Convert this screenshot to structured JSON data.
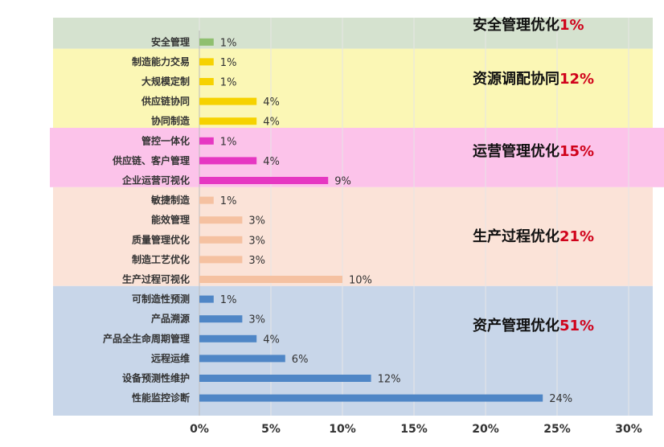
{
  "chart_data": {
    "type": "bar",
    "orientation": "horizontal",
    "xlim": [
      0,
      30
    ],
    "x_ticks": [
      "0%",
      "5%",
      "10%",
      "15%",
      "20%",
      "25%",
      "30%"
    ],
    "grid": true,
    "groups": [
      {
        "name": "安全管理优化",
        "percent": "1%",
        "color": "#d5e2cf",
        "bar_color": "#8fbf6f"
      },
      {
        "name": "资源调配协同",
        "percent": "12%",
        "color": "#fbf7b5",
        "bar_color": "#f6d200"
      },
      {
        "name": "运营管理优化",
        "percent": "15%",
        "color": "#fcc3ea",
        "bar_color": "#e637c2"
      },
      {
        "name": "生产过程优化",
        "percent": "21%",
        "color": "#fbe3d8",
        "bar_color": "#f5c1a1"
      },
      {
        "name": "资产管理优化",
        "percent": "51%",
        "color": "#c8d6e9",
        "bar_color": "#4f86c6"
      }
    ],
    "categories": [
      "安全管理",
      "制造能力交易",
      "大规模定制",
      "供应链协同",
      "协同制造",
      "管控一体化",
      "供应链、客户管理",
      "企业运营可视化",
      "敏捷制造",
      "能效管理",
      "质量管理优化",
      "制造工艺优化",
      "生产过程可视化",
      "可制造性预测",
      "产品溯源",
      "产品全生命周期管理",
      "远程运维",
      "设备预测性维护",
      "性能监控诊断"
    ],
    "values": [
      1,
      1,
      1,
      4,
      4,
      1,
      4,
      9,
      1,
      3,
      3,
      3,
      10,
      1,
      3,
      4,
      6,
      12,
      24
    ],
    "value_labels": [
      "1%",
      "1%",
      "1%",
      "4%",
      "4%",
      "1%",
      "4%",
      "9%",
      "1%",
      "3%",
      "3%",
      "3%",
      "10%",
      "1%",
      "3%",
      "4%",
      "6%",
      "12%",
      "24%"
    ],
    "category_group": [
      0,
      1,
      1,
      1,
      1,
      2,
      2,
      2,
      3,
      3,
      3,
      3,
      3,
      4,
      4,
      4,
      4,
      4,
      4
    ]
  }
}
